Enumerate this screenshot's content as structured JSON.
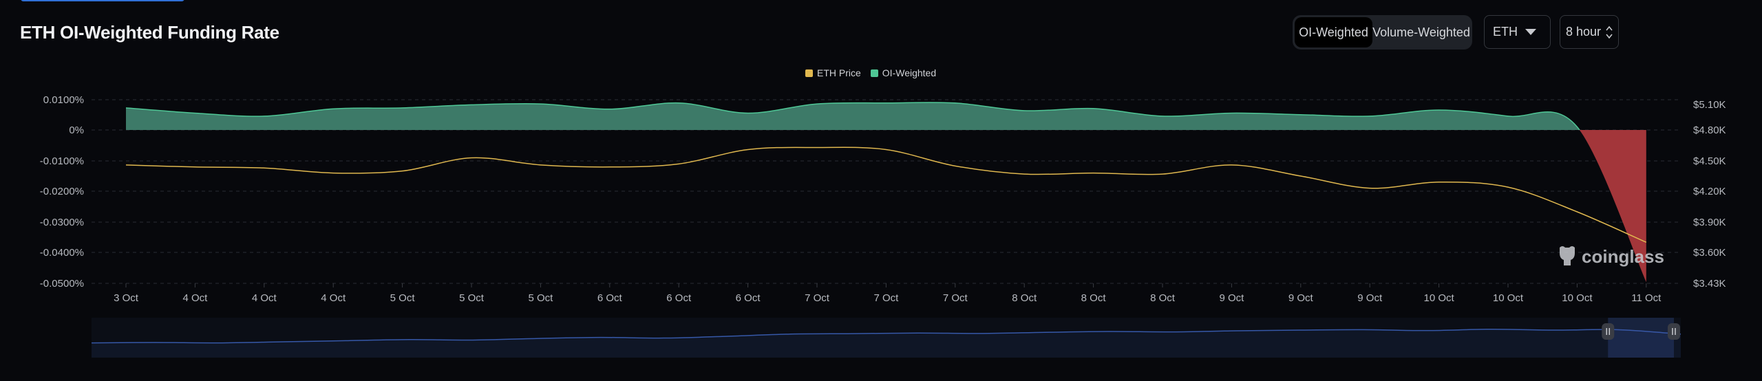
{
  "header": {
    "title": "ETH OI-Weighted Funding Rate",
    "tabs": [
      {
        "label": "OI-Weighted",
        "active": true
      },
      {
        "label": "Volume-Weighted",
        "active": false
      }
    ],
    "symbol_select": {
      "value": "ETH",
      "icon": "caret-down-icon"
    },
    "interval_select": {
      "value": "8 hour",
      "icon": "up-down-chevron-icon"
    }
  },
  "watermark": "coinglass",
  "chart_data": {
    "type": "area",
    "title": "ETH OI-Weighted Funding Rate",
    "legend": [
      {
        "name": "ETH Price",
        "color": "#e0b84f"
      },
      {
        "name": "OI-Weighted",
        "color": "#4fc796"
      }
    ],
    "legend_placement": "top-center",
    "categories": [
      "3 Oct",
      "4 Oct",
      "4 Oct",
      "4 Oct",
      "5 Oct",
      "5 Oct",
      "5 Oct",
      "6 Oct",
      "6 Oct",
      "6 Oct",
      "7 Oct",
      "7 Oct",
      "7 Oct",
      "8 Oct",
      "8 Oct",
      "8 Oct",
      "9 Oct",
      "9 Oct",
      "9 Oct",
      "10 Oct",
      "10 Oct",
      "10 Oct",
      "11 Oct"
    ],
    "series": [
      {
        "name": "OI-Weighted",
        "axis": "left",
        "unit": "%",
        "positive_color": "#3d7a68",
        "negative_color": "#a3363a",
        "values": [
          0.0072,
          0.0055,
          0.0045,
          0.0069,
          0.0072,
          0.0082,
          0.0085,
          0.0068,
          0.0088,
          0.0055,
          0.0085,
          0.0088,
          0.0088,
          0.0063,
          0.007,
          0.0045,
          0.0055,
          0.005,
          0.0045,
          0.0065,
          0.0045,
          0.001,
          -0.0496
        ]
      },
      {
        "name": "ETH Price",
        "axis": "right",
        "unit": "USD K",
        "color": "#e0b84f",
        "values": [
          4.46,
          4.44,
          4.43,
          4.38,
          4.4,
          4.53,
          4.46,
          4.44,
          4.47,
          4.61,
          4.63,
          4.61,
          4.45,
          4.37,
          4.38,
          4.37,
          4.46,
          4.35,
          4.23,
          4.29,
          4.24,
          4.0,
          3.7
        ]
      }
    ],
    "left_axis": {
      "ticks": [
        "0.0100%",
        "0%",
        "-0.0100%",
        "-0.0200%",
        "-0.0300%",
        "-0.0400%",
        "-0.0500%"
      ],
      "tick_values": [
        0.01,
        0,
        -0.01,
        -0.02,
        -0.03,
        -0.04,
        -0.05
      ],
      "ylim": [
        -0.05,
        0.01
      ]
    },
    "right_axis": {
      "ticks": [
        "$5.10K",
        "$4.80K",
        "$4.50K",
        "$4.20K",
        "$3.90K",
        "$3.60K",
        "$3.43K"
      ],
      "tick_values": [
        5.1,
        4.8,
        4.5,
        4.2,
        3.9,
        3.6,
        3.43
      ]
    },
    "grid": true,
    "navigator": {
      "values": [
        0.2,
        0.22,
        0.2,
        0.25,
        0.3,
        0.35,
        0.33,
        0.4,
        0.45,
        0.42,
        0.5,
        0.6,
        0.62,
        0.65,
        0.63,
        0.68,
        0.72,
        0.7,
        0.75,
        0.78,
        0.8,
        0.76,
        0.82,
        0.78,
        0.8,
        0.6
      ],
      "selection": [
        0.975,
        1.0
      ]
    }
  }
}
